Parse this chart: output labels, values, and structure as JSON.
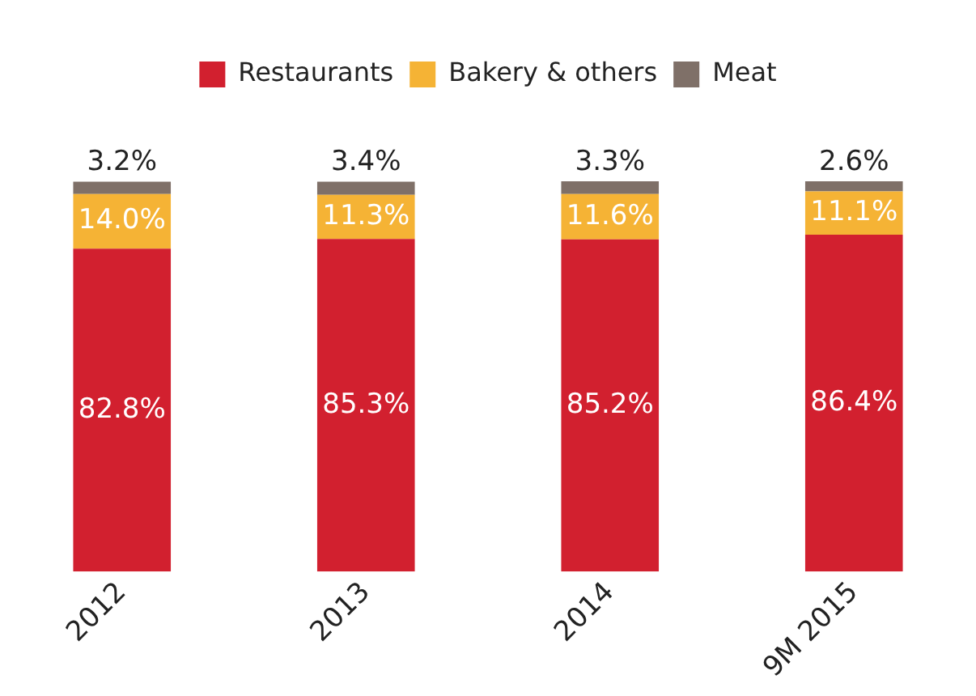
{
  "chart_data": {
    "type": "bar",
    "stacked": true,
    "legend": "top",
    "grid": false,
    "tick_labels": "x",
    "categories": [
      "2012",
      "2013",
      "2014",
      "9M 2015"
    ],
    "series": [
      {
        "name": "Restaurants",
        "color": "#d2202f",
        "values": [
          82.8,
          85.3,
          85.2,
          86.4
        ],
        "value_labels": [
          "82.8%",
          "85.3%",
          "85.2%",
          "86.4%"
        ]
      },
      {
        "name": "Bakery & others",
        "color": "#f5b335",
        "values": [
          14.0,
          11.3,
          11.6,
          11.1
        ],
        "value_labels": [
          "14.0%",
          "11.3%",
          "11.6%",
          "11.1%"
        ]
      },
      {
        "name": "Meat",
        "color": "#7f7068",
        "values": [
          3.2,
          3.4,
          3.3,
          2.6
        ],
        "value_labels": [
          "3.2%",
          "3.4%",
          "3.3%",
          "2.6%"
        ]
      }
    ]
  }
}
